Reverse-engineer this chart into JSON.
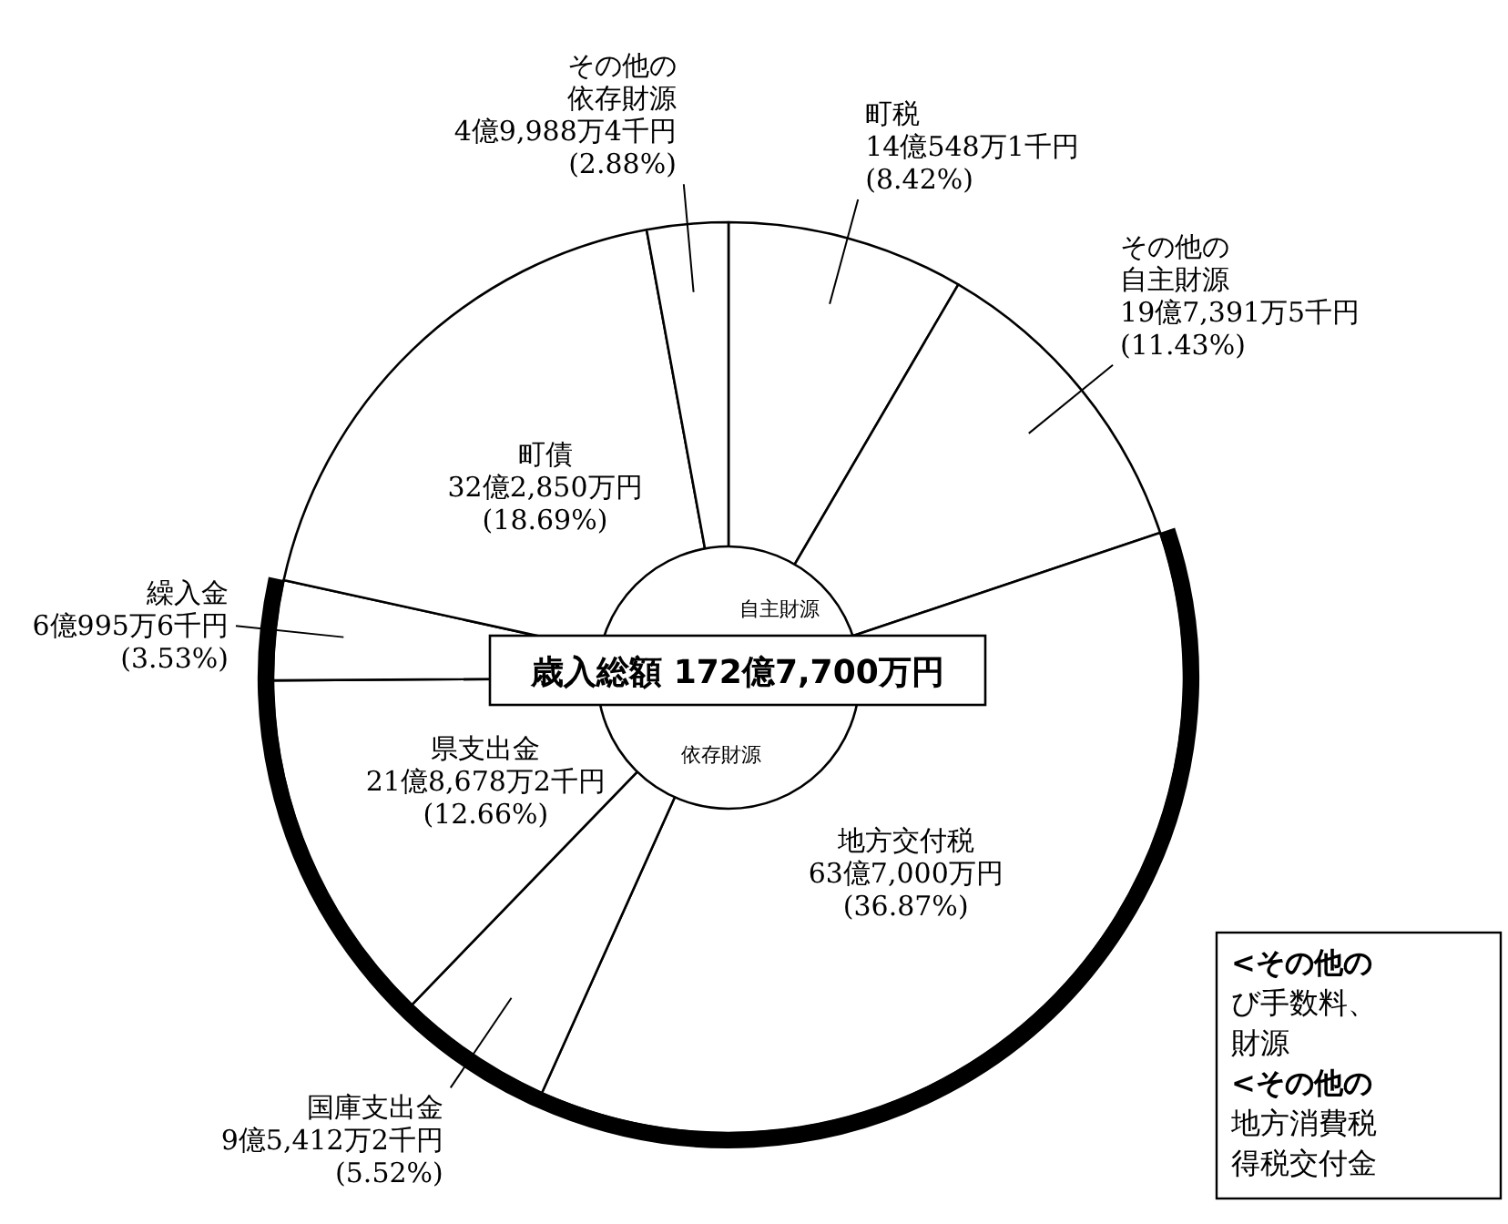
{
  "chart_data": {
    "type": "donut",
    "title": "歳入総額 172億7,700万円",
    "categories": [
      "町税",
      "その他の自主財源",
      "地方交付税",
      "国庫支出金",
      "県支出金",
      "繰入金",
      "町債",
      "その他の依存財源"
    ],
    "values": [
      8.42,
      11.43,
      36.87,
      5.52,
      12.66,
      3.53,
      18.69,
      2.88
    ],
    "colors": [
      "#ffffff",
      "#ffffff",
      "#ffffff",
      "#ffffff",
      "#ffffff",
      "#ffffff",
      "#ffffff",
      "#ffffff"
    ],
    "value_labels": [
      "14億548万1千円\n(8.42%)",
      "19億7,391万5千円\n(11.43%)",
      "63億7,000万円\n(36.87%)",
      "9億5,412万2千円\n(5.52%)",
      "21億8,678万2千円\n(12.66%)",
      "6億995万6千円\n(3.53%)",
      "32億2,850万円\n(18.69%)",
      "4億9,988万4千円\n(2.88%)"
    ],
    "annotations": [
      "自主財源",
      "依存財源",
      "<その他の",
      "び手数料、",
      "財源",
      "<その他の",
      "地方消費税",
      "得税交付金"
    ]
  }
}
